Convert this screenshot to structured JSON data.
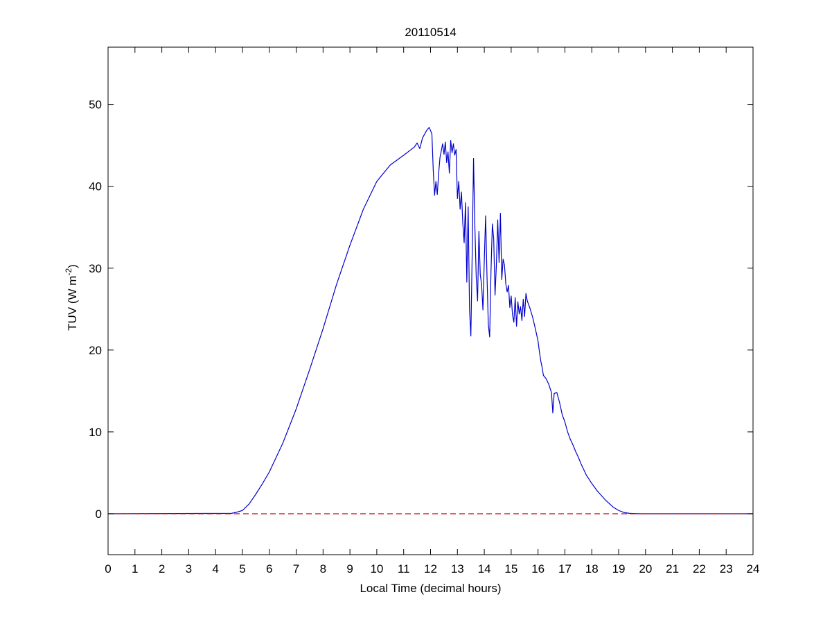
{
  "chart_data": {
    "type": "line",
    "title": "20110514",
    "xlabel": "Local Time (decimal hours)",
    "ylabel": "TUV (W m⁻²)",
    "ylabel_parts": {
      "base": "TUV (W m",
      "sup": "-2",
      "close": ")"
    },
    "xlim": [
      0,
      24
    ],
    "ylim": [
      -5,
      57
    ],
    "xticks": [
      0,
      1,
      2,
      3,
      4,
      5,
      6,
      7,
      8,
      9,
      10,
      11,
      12,
      13,
      14,
      15,
      16,
      17,
      18,
      19,
      20,
      21,
      22,
      23,
      24
    ],
    "yticks": [
      0,
      10,
      20,
      30,
      40,
      50
    ],
    "grid": false,
    "legend": "none",
    "series": [
      {
        "color": "#0000cc",
        "style": "solid",
        "x": [
          0,
          4.6,
          4.8,
          5.0,
          5.25,
          5.5,
          5.75,
          6.0,
          6.5,
          7.0,
          7.5,
          8.0,
          8.5,
          9.0,
          9.5,
          10.0,
          10.5,
          11.0,
          11.4,
          11.5,
          11.6,
          11.7,
          11.85,
          11.95,
          12.05,
          12.1,
          12.15,
          12.2,
          12.25,
          12.3,
          12.35,
          12.45,
          12.5,
          12.55,
          12.6,
          12.65,
          12.7,
          12.75,
          12.8,
          12.85,
          12.9,
          12.95,
          13.0,
          13.05,
          13.1,
          13.15,
          13.2,
          13.25,
          13.3,
          13.35,
          13.4,
          13.45,
          13.5,
          13.55,
          13.6,
          13.65,
          13.7,
          13.75,
          13.8,
          13.85,
          13.9,
          13.95,
          14.0,
          14.05,
          14.1,
          14.15,
          14.2,
          14.25,
          14.3,
          14.35,
          14.4,
          14.45,
          14.5,
          14.55,
          14.6,
          14.65,
          14.7,
          14.75,
          14.8,
          14.85,
          14.9,
          14.95,
          15.0,
          15.05,
          15.1,
          15.15,
          15.2,
          15.25,
          15.3,
          15.35,
          15.4,
          15.45,
          15.5,
          15.55,
          15.6,
          15.7,
          15.8,
          15.9,
          16.0,
          16.05,
          16.1,
          16.15,
          16.2,
          16.3,
          16.4,
          16.5,
          16.55,
          16.6,
          16.7,
          16.8,
          16.9,
          17.0,
          17.1,
          17.2,
          17.3,
          17.4,
          17.5,
          17.6,
          17.7,
          17.8,
          18.0,
          18.2,
          18.5,
          18.8,
          19.0,
          19.2,
          19.4,
          19.6,
          19.8,
          24
        ],
        "y": [
          0,
          0.05,
          0.2,
          0.4,
          1.2,
          2.4,
          3.7,
          5.1,
          8.6,
          12.8,
          17.6,
          22.6,
          28.0,
          32.8,
          37.2,
          40.6,
          42.6,
          43.8,
          44.8,
          45.3,
          44.6,
          45.9,
          46.8,
          47.2,
          46.4,
          42.0,
          38.9,
          40.6,
          39.0,
          41.5,
          43.5,
          45.2,
          43.9,
          45.4,
          42.9,
          44.2,
          41.6,
          45.6,
          44.1,
          45.2,
          43.8,
          44.5,
          38.5,
          40.6,
          37.2,
          39.3,
          35.5,
          33.1,
          38.0,
          28.3,
          37.5,
          25.0,
          21.7,
          31.9,
          43.4,
          35.0,
          28.9,
          26.0,
          34.5,
          29.2,
          28.0,
          24.9,
          31.0,
          36.4,
          29.1,
          23.1,
          21.6,
          29.7,
          35.4,
          33.6,
          26.7,
          30.4,
          35.9,
          30.7,
          36.7,
          28.6,
          31.1,
          30.4,
          28.1,
          27.1,
          27.9,
          25.2,
          26.6,
          24.3,
          23.4,
          26.4,
          22.9,
          25.9,
          24.4,
          25.3,
          23.6,
          26.2,
          24.1,
          26.9,
          26.0,
          25.1,
          24.0,
          22.6,
          21.1,
          19.8,
          18.7,
          17.9,
          16.9,
          16.5,
          15.8,
          14.8,
          12.3,
          14.7,
          14.8,
          13.6,
          12.1,
          11.2,
          10.0,
          9.1,
          8.4,
          7.6,
          6.9,
          6.1,
          5.4,
          4.7,
          3.7,
          2.8,
          1.7,
          0.8,
          0.4,
          0.15,
          0.05,
          0.02,
          0,
          0
        ]
      },
      {
        "color": "#cc0000",
        "style": "dashed",
        "x": [
          0,
          24
        ],
        "y": [
          0,
          0
        ]
      }
    ]
  }
}
